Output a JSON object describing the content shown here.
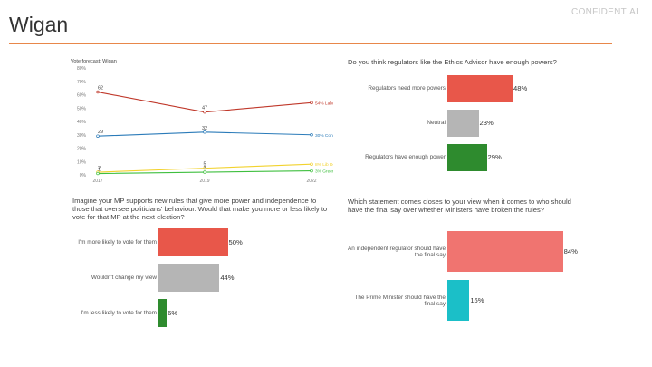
{
  "page": {
    "title": "Wigan",
    "watermark": "CONFIDENTIAL"
  },
  "colors": {
    "accent_rule": "#e8874a"
  },
  "chart_data": [
    {
      "type": "line",
      "title": "Vote forecast: Wigan",
      "x": [
        "2017",
        "2019",
        "2022"
      ],
      "ylim": [
        0,
        80
      ],
      "yticks": [
        "0%",
        "10%",
        "20%",
        "30%",
        "40%",
        "50%",
        "60%",
        "70%",
        "80%"
      ],
      "series": [
        {
          "name": "Labour",
          "values": [
            62,
            47,
            54
          ],
          "labels": [
            "62",
            "47",
            ""
          ],
          "end_label": "54% Labour",
          "color": "#c0392b"
        },
        {
          "name": "Conservative",
          "values": [
            29,
            32,
            30
          ],
          "labels": [
            "29",
            "32",
            ""
          ],
          "end_label": "30% Conservative",
          "color": "#2b7bb9"
        },
        {
          "name": "Lib Dem",
          "values": [
            2,
            5,
            8
          ],
          "labels": [
            "2",
            "5",
            ""
          ],
          "end_label": "8% Lib Dem",
          "color": "#f2d22e"
        },
        {
          "name": "Green",
          "values": [
            1,
            2,
            3
          ],
          "labels": [
            "1",
            "2",
            ""
          ],
          "end_label": "3% Green",
          "color": "#3fbf3f"
        }
      ]
    },
    {
      "type": "bar",
      "title": "Do you think regulators like the Ethics Advisor have enough powers?",
      "categories": [
        "Regulators need more powers",
        "Neutral",
        "Regulators have enough power"
      ],
      "values": [
        48,
        23,
        29
      ],
      "labels": [
        "48%",
        "23%",
        "29%"
      ],
      "colors": [
        "#e8574a",
        "#b5b5b5",
        "#2e8b2e"
      ]
    },
    {
      "type": "bar",
      "title": "Imagine your MP supports new rules that give more power and independence to those that oversee politicians' behaviour. Would that make you more or less likely to vote for that MP at the next election?",
      "categories": [
        "I'm more likely to vote for them",
        "Wouldn't change my view",
        "I'm less likely to vote for them"
      ],
      "values": [
        50,
        44,
        6
      ],
      "labels": [
        "50%",
        "44%",
        "6%"
      ],
      "colors": [
        "#e8574a",
        "#b5b5b5",
        "#2e8b2e"
      ]
    },
    {
      "type": "bar",
      "title": "Which statement comes closes to your view when it comes to who should have the final say over whether Ministers have broken the rules?",
      "categories": [
        "An independent regulator should have the final say",
        "The Prime Minister should have the final say"
      ],
      "values": [
        84,
        16
      ],
      "labels": [
        "84%",
        "16%"
      ],
      "colors": [
        "#f07470",
        "#1bbfc8"
      ]
    }
  ]
}
